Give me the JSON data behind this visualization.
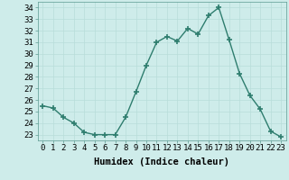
{
  "x": [
    0,
    1,
    2,
    3,
    4,
    5,
    6,
    7,
    8,
    9,
    10,
    11,
    12,
    13,
    14,
    15,
    16,
    17,
    18,
    19,
    20,
    21,
    22,
    23
  ],
  "y": [
    25.5,
    25.3,
    24.5,
    24.0,
    23.2,
    23.0,
    23.0,
    23.0,
    24.5,
    26.7,
    29.0,
    31.0,
    31.5,
    31.1,
    32.2,
    31.7,
    33.3,
    34.0,
    31.2,
    28.3,
    26.4,
    25.2,
    23.3,
    22.8
  ],
  "line_color": "#2e7d6e",
  "marker": "+",
  "marker_size": 4,
  "marker_lw": 1.2,
  "bg_color": "#ceecea",
  "grid_color": "#b8ddd9",
  "xlabel": "Humidex (Indice chaleur)",
  "xlim": [
    -0.5,
    23.5
  ],
  "ylim": [
    22.5,
    34.5
  ],
  "yticks": [
    23,
    24,
    25,
    26,
    27,
    28,
    29,
    30,
    31,
    32,
    33,
    34
  ],
  "xticks": [
    0,
    1,
    2,
    3,
    4,
    5,
    6,
    7,
    8,
    9,
    10,
    11,
    12,
    13,
    14,
    15,
    16,
    17,
    18,
    19,
    20,
    21,
    22,
    23
  ],
  "xlabel_fontsize": 7.5,
  "tick_fontsize": 6.5,
  "linewidth": 1.0
}
